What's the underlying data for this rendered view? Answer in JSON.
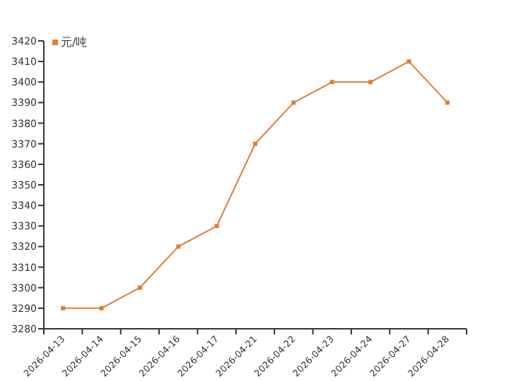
{
  "chart_data": {
    "type": "line",
    "categories": [
      "2026-04-13",
      "2026-04-14",
      "2026-04-15",
      "2026-04-16",
      "2026-04-17",
      "2026-04-21",
      "2026-04-22",
      "2026-04-23",
      "2026-04-24",
      "2026-04-27",
      "2026-04-28"
    ],
    "series": [
      {
        "name": "元/吨",
        "color": "#e07b39",
        "values": [
          3290,
          3290,
          3300,
          3320,
          3330,
          3370,
          3390,
          3400,
          3400,
          3410,
          3390
        ]
      }
    ],
    "ylim": [
      3280,
      3420
    ],
    "yticks": [
      3280,
      3290,
      3300,
      3310,
      3320,
      3330,
      3340,
      3350,
      3360,
      3370,
      3380,
      3390,
      3400,
      3410,
      3420
    ],
    "legend": "top left",
    "marker": "square",
    "grid": false
  }
}
